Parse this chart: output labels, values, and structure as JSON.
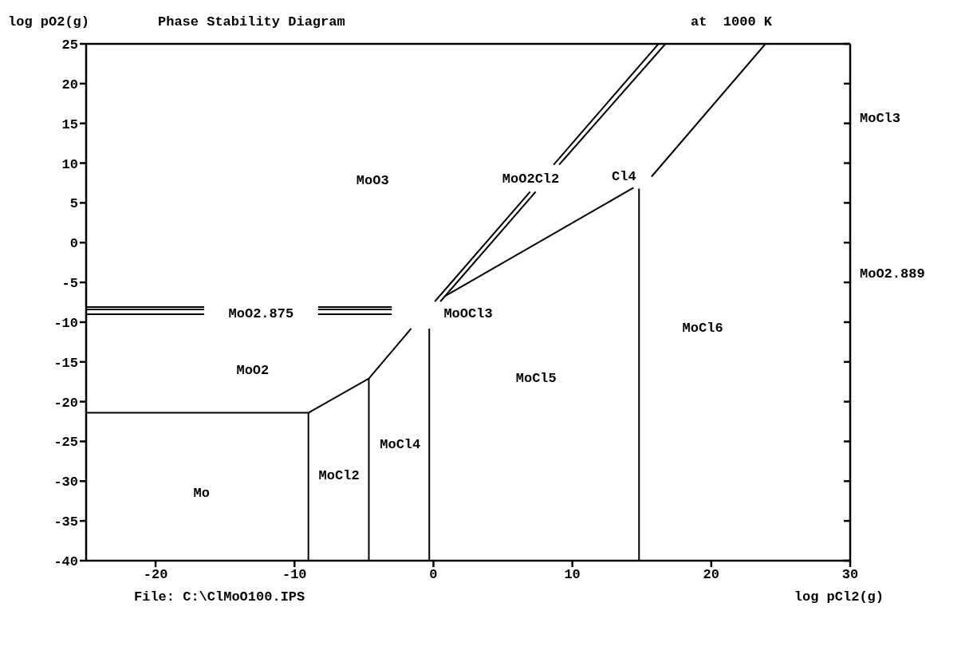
{
  "chart_data": {
    "type": "line",
    "title": "Phase Stability Diagram",
    "subtitle": "at  1000 K",
    "xlabel": "log pCl2(g)",
    "ylabel": "log pO2(g)",
    "xlim": [
      -25,
      30
    ],
    "xticks": [
      -20,
      -10,
      0,
      10,
      20,
      30
    ],
    "ylim": [
      -40,
      25
    ],
    "yticks": [
      -40,
      -35,
      -30,
      -25,
      -20,
      -15,
      -10,
      -5,
      0,
      5,
      10,
      15,
      20,
      25
    ],
    "marker": "none",
    "line_style": "solid",
    "series": [
      {
        "color": "#000000",
        "x": [
          -25,
          -9.0
        ],
        "values": [
          -21.4,
          -21.4
        ]
      },
      {
        "color": "#000000",
        "x": [
          -9.0,
          -9.0
        ],
        "values": [
          -21.4,
          -40
        ]
      },
      {
        "color": "#000000",
        "x": [
          -9.0,
          -4.65,
          -1.6
        ],
        "values": [
          -21.4,
          -17.1,
          -10.8
        ]
      },
      {
        "color": "#000000",
        "x": [
          -4.65,
          -4.65
        ],
        "values": [
          -17.1,
          -40
        ]
      },
      {
        "color": "#000000",
        "x": [
          -0.3,
          -0.3
        ],
        "values": [
          -10.8,
          -40
        ]
      },
      {
        "color": "#000000",
        "x": [
          14.8,
          14.8
        ],
        "values": [
          6.8,
          -40
        ]
      },
      {
        "color": "#000000",
        "x": [
          0.85,
          14.4
        ],
        "values": [
          -6.7,
          6.9
        ]
      },
      {
        "color": "#000000",
        "x": [
          15.7,
          23.9
        ],
        "values": [
          8.3,
          25
        ]
      },
      {
        "color": "#000000",
        "x": [
          0.1,
          6.96,
          7.0,
          8.65,
          16.2
        ],
        "values": [
          -7.4,
          6.4,
          null,
          9.8,
          25
        ]
      },
      {
        "color": "#000000",
        "x": [
          0.5,
          7.36,
          7.4,
          9.05,
          16.7
        ],
        "values": [
          -7.4,
          6.4,
          null,
          9.8,
          25
        ]
      },
      {
        "color": "#000000",
        "x": [
          -25,
          -16.5,
          -16.4,
          -8.3,
          -3.0
        ],
        "values": [
          -8.1,
          -8.1,
          null,
          -8.1,
          -8.1
        ]
      },
      {
        "color": "#000000",
        "x": [
          -25,
          -16.5,
          -16.4,
          -8.3,
          -3.0
        ],
        "values": [
          -8.4,
          -8.4,
          null,
          -8.4,
          -8.4
        ]
      },
      {
        "color": "#000000",
        "x": [
          -25,
          -16.5,
          -16.4,
          -8.3,
          -3.0
        ],
        "values": [
          -9.0,
          -9.0,
          null,
          -9.0,
          -9.0
        ]
      }
    ],
    "annotations": [
      "File: C:\\ClMoO100.IPS",
      "MoCl3",
      "MoO2.889",
      "MoO3",
      "MoO2Cl2",
      "Cl4",
      "MoOCl3",
      "MoO2.875",
      "MoO2",
      "MoCl5",
      "MoCl6",
      "MoCl4",
      "MoCl2",
      "Mo"
    ]
  }
}
